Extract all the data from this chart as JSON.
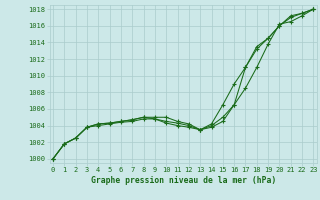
{
  "x": [
    0,
    1,
    2,
    3,
    4,
    5,
    6,
    7,
    8,
    9,
    10,
    11,
    12,
    13,
    14,
    15,
    16,
    17,
    18,
    19,
    20,
    21,
    22,
    23
  ],
  "line1": [
    1000,
    1001.8,
    1002.5,
    1003.8,
    1004.2,
    1004.3,
    1004.5,
    1004.7,
    1005.0,
    1004.8,
    1004.3,
    1004.0,
    1003.8,
    1003.5,
    1003.8,
    1004.5,
    1006.5,
    1011.0,
    1013.5,
    1014.5,
    1016.0,
    1017.2,
    1017.5,
    1018.0
  ],
  "line2": [
    1000,
    1001.8,
    1002.5,
    1003.8,
    1004.0,
    1004.2,
    1004.4,
    1004.5,
    1004.8,
    1004.8,
    1004.5,
    1004.3,
    1004.0,
    1003.5,
    1004.0,
    1005.0,
    1006.5,
    1008.5,
    1011.0,
    1013.8,
    1016.2,
    1016.5,
    1017.2,
    1018.0
  ],
  "line3": [
    1000,
    1001.8,
    1002.5,
    1003.8,
    1004.2,
    1004.3,
    1004.5,
    1004.7,
    1005.0,
    1005.0,
    1005.0,
    1004.5,
    1004.2,
    1003.5,
    1004.2,
    1006.5,
    1009.0,
    1011.0,
    1013.2,
    1014.5,
    1016.0,
    1017.0,
    1017.5,
    1018.0
  ],
  "bg_color": "#cce8e8",
  "grid_color": "#aacccc",
  "line_color": "#1a6b1a",
  "ylabel_values": [
    1000,
    1002,
    1004,
    1006,
    1008,
    1010,
    1012,
    1014,
    1016,
    1018
  ],
  "ylim": [
    999.5,
    1018.5
  ],
  "xlim": [
    -0.3,
    23.3
  ],
  "xlabel": "Graphe pression niveau de la mer (hPa)",
  "tick_fontsize": 5.0,
  "label_fontsize": 5.8
}
